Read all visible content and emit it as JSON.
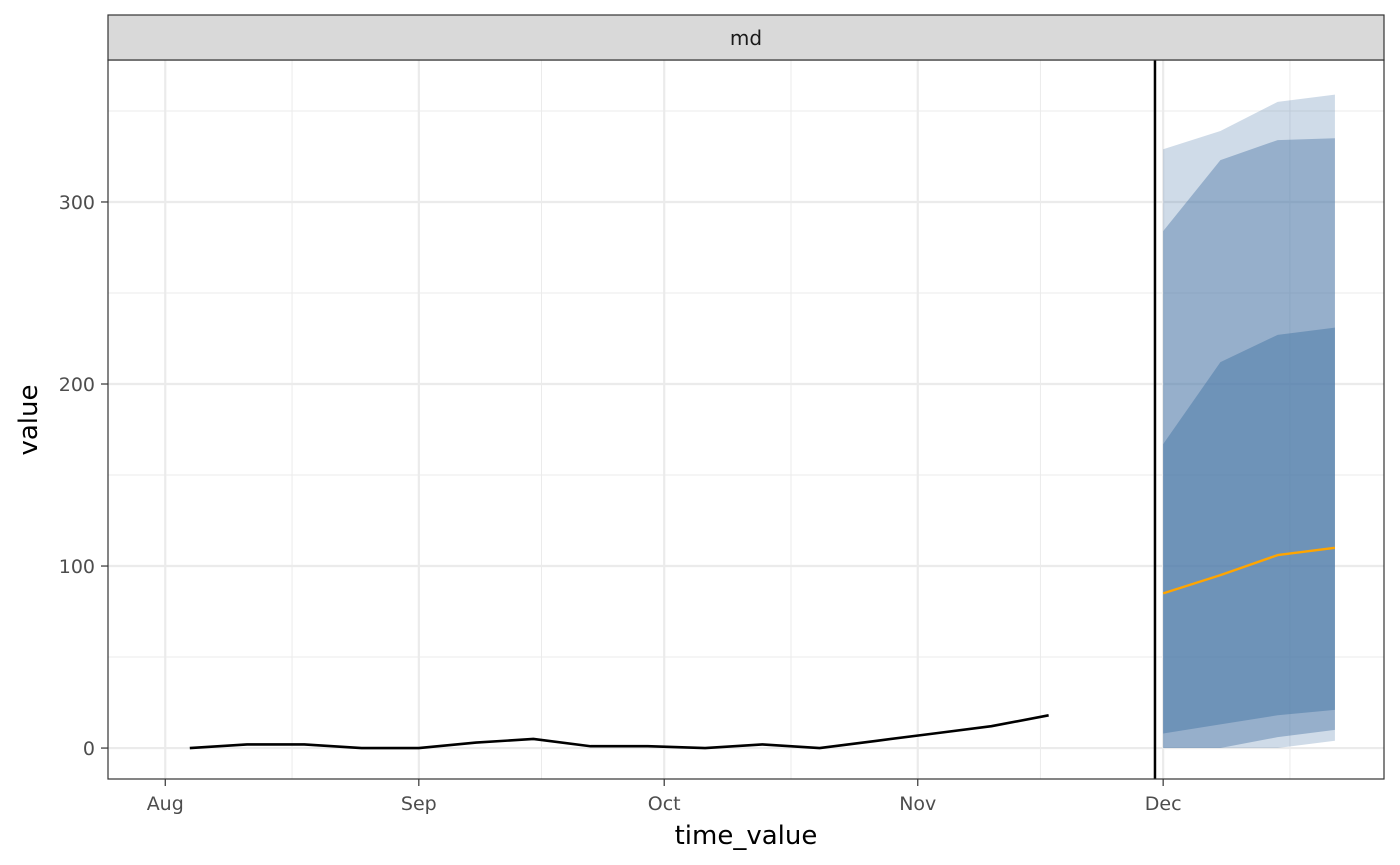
{
  "chart_data": {
    "type": "line",
    "facet_label": "md",
    "xlabel": "time_value",
    "ylabel": "value",
    "x_ticks": [
      {
        "label": "Aug",
        "date": "2021-08-01"
      },
      {
        "label": "Sep",
        "date": "2021-09-01"
      },
      {
        "label": "Oct",
        "date": "2021-10-01"
      },
      {
        "label": "Nov",
        "date": "2021-11-01"
      },
      {
        "label": "Dec",
        "date": "2021-12-01"
      }
    ],
    "y_ticks": [
      0,
      100,
      200,
      300
    ],
    "xlim": [
      "2021-07-25",
      "2021-12-28"
    ],
    "ylim": [
      -17,
      378
    ],
    "forecast_date": "2021-11-30",
    "series": [
      {
        "name": "observed",
        "color": "#000000",
        "points": [
          {
            "x": "2021-08-04",
            "y": 0
          },
          {
            "x": "2021-08-11",
            "y": 2
          },
          {
            "x": "2021-08-18",
            "y": 2
          },
          {
            "x": "2021-08-25",
            "y": 0
          },
          {
            "x": "2021-09-01",
            "y": 0
          },
          {
            "x": "2021-09-08",
            "y": 3
          },
          {
            "x": "2021-09-15",
            "y": 5
          },
          {
            "x": "2021-09-22",
            "y": 1
          },
          {
            "x": "2021-09-29",
            "y": 1
          },
          {
            "x": "2021-10-06",
            "y": 0
          },
          {
            "x": "2021-10-13",
            "y": 2
          },
          {
            "x": "2021-10-20",
            "y": 0
          },
          {
            "x": "2021-10-27",
            "y": 4
          },
          {
            "x": "2021-11-03",
            "y": 8
          },
          {
            "x": "2021-11-10",
            "y": 12
          },
          {
            "x": "2021-11-17",
            "y": 18
          }
        ]
      },
      {
        "name": "forecast median",
        "color": "#ffa500",
        "points": [
          {
            "x": "2021-12-01",
            "y": 85
          },
          {
            "x": "2021-12-08",
            "y": 95
          },
          {
            "x": "2021-12-15",
            "y": 106
          },
          {
            "x": "2021-12-22",
            "y": 110
          }
        ]
      }
    ],
    "bands": [
      {
        "name": "outer interval",
        "color": "#4f7ba9",
        "opacity": 0.27,
        "x": [
          "2021-12-01",
          "2021-12-08",
          "2021-12-15",
          "2021-12-22"
        ],
        "lower": [
          0,
          0,
          0,
          4
        ],
        "upper": [
          329,
          339,
          355,
          359
        ]
      },
      {
        "name": "middle interval",
        "color": "#4f7ba9",
        "opacity": 0.45,
        "x": [
          "2021-12-01",
          "2021-12-08",
          "2021-12-15",
          "2021-12-22"
        ],
        "lower": [
          0,
          0,
          6,
          10
        ],
        "upper": [
          284,
          323,
          334,
          335
        ]
      },
      {
        "name": "inner interval",
        "color": "#4f7ba9",
        "opacity": 0.55,
        "x": [
          "2021-12-01",
          "2021-12-08",
          "2021-12-15",
          "2021-12-22"
        ],
        "lower": [
          8,
          13,
          18,
          21
        ],
        "upper": [
          167,
          212,
          227,
          231
        ]
      }
    ]
  }
}
